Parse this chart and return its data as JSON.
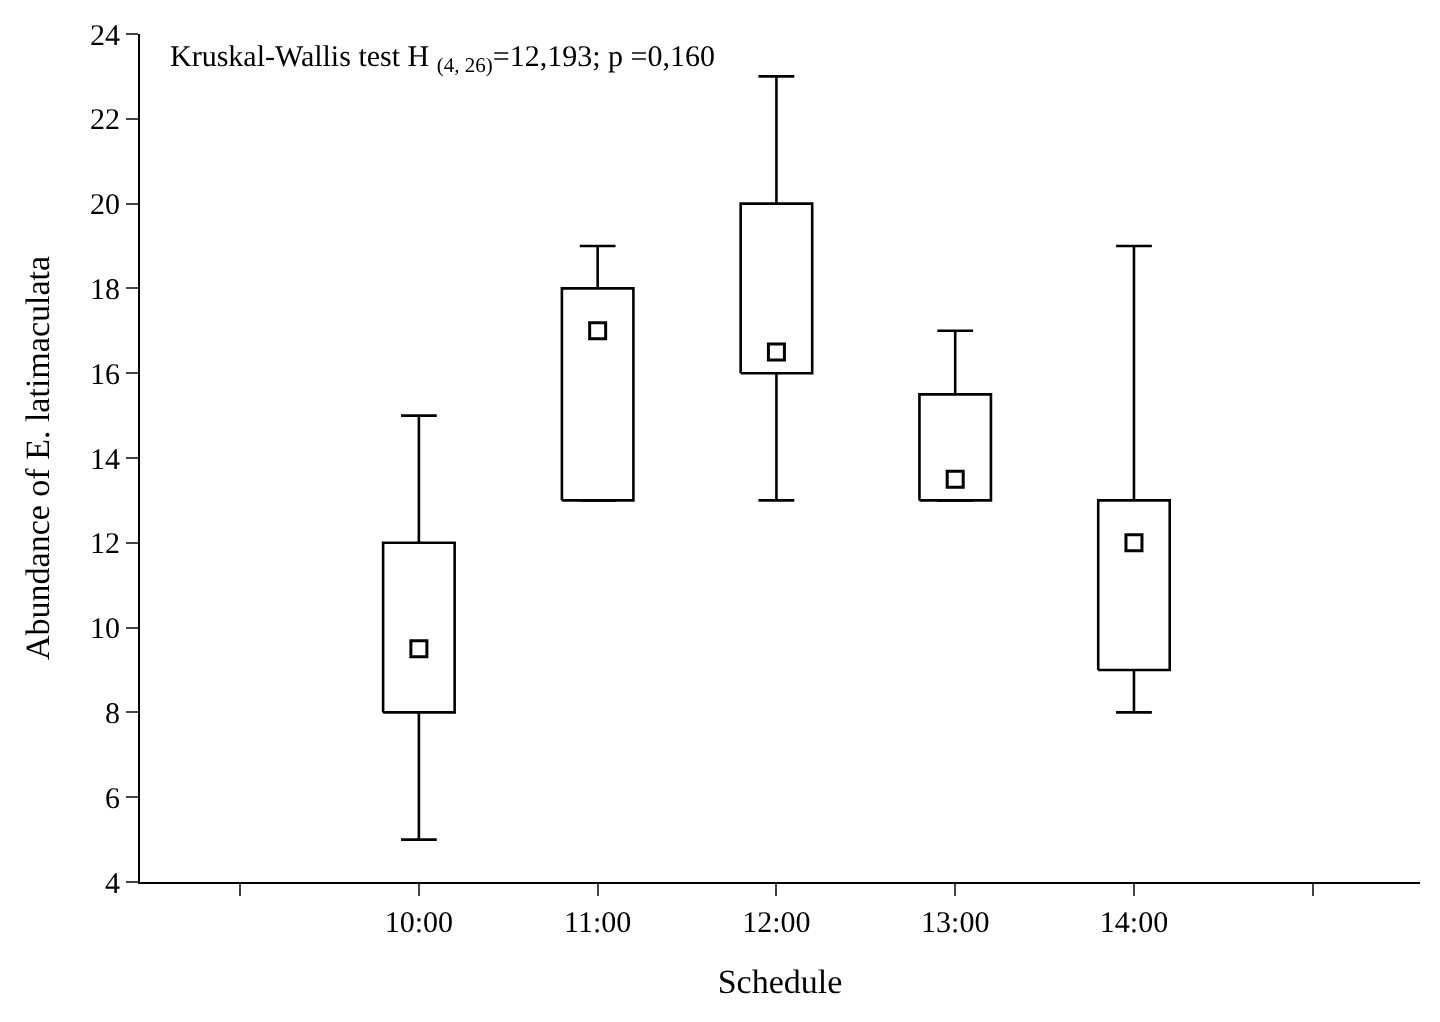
{
  "chart_data": {
    "type": "box",
    "annotations": [
      "Kruskal-Wallis test H $_{(4, 26)}$=12,193; p =0,160"
    ],
    "xlabel": "Schedule",
    "ylabel": "Abundance of E. latimaculata",
    "categories": [
      null,
      "10:00",
      "11:00",
      "12:00",
      "13:00",
      "14:00",
      null
    ],
    "boxes": [
      null,
      {
        "low": 5,
        "q1": 8,
        "median": 9.5,
        "q3": 12,
        "high": 15
      },
      {
        "low": 13,
        "q1": 13,
        "median": 17,
        "q3": 18,
        "high": 19
      },
      {
        "low": 13,
        "q1": 16,
        "median": 16.5,
        "q3": 20,
        "high": 23
      },
      {
        "low": 13,
        "q1": 13,
        "median": 13.5,
        "q3": 15.5,
        "high": 17
      },
      {
        "low": 8,
        "q1": 9,
        "median": 12,
        "q3": 13,
        "high": 19
      },
      null
    ],
    "color": "#000000",
    "marker": "square",
    "ylim": [
      4,
      24
    ],
    "yticks": [
      4,
      6,
      8,
      10,
      12,
      14,
      16,
      18,
      20,
      22,
      24
    ]
  }
}
